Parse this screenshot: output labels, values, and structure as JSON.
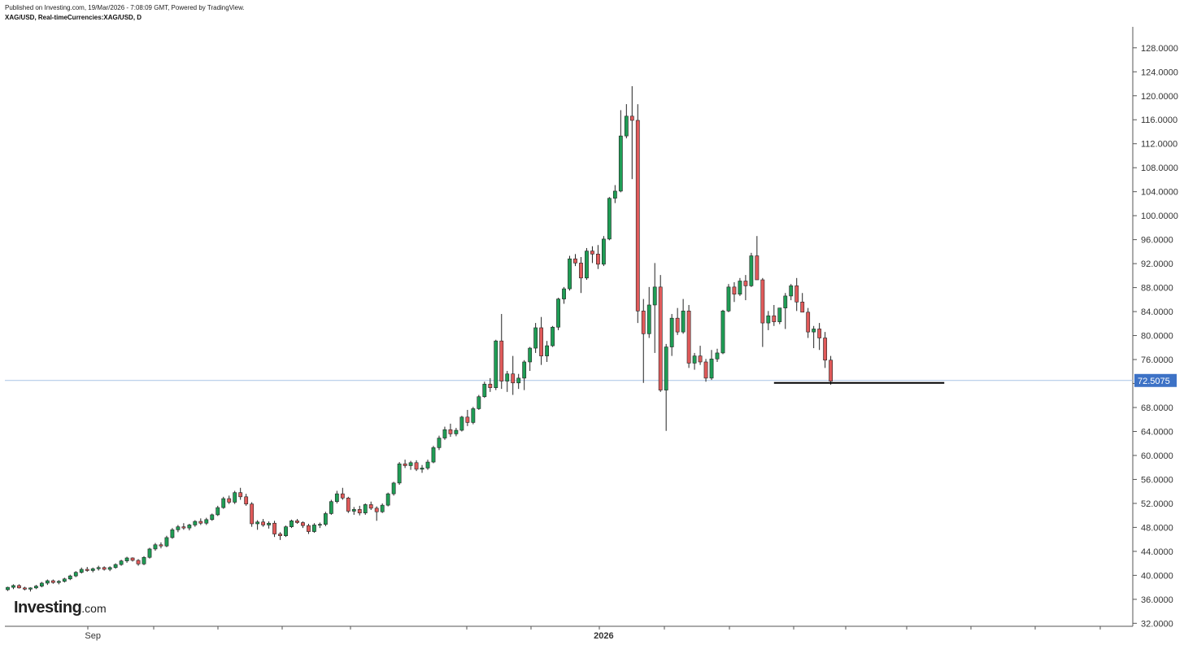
{
  "header": {
    "published": "Published on Investing.com, 19/Mar/2026 - 7:08:09 GMT, Powered by TradingView.",
    "symbol": "XAG/USD, Real-timeCurrencies:XAG/USD, D"
  },
  "logo": {
    "main": "Investing",
    "suffix": ".com"
  },
  "colors": {
    "up": "#1f9d55",
    "down": "#e05a5a",
    "wick": "#222222",
    "price_line": "#a9c4e6",
    "price_badge": "#3d72c6",
    "support": "#000000",
    "axis": "#555555"
  },
  "chart_data": {
    "type": "candlestick",
    "y_ticks": [
      "32.0000",
      "36.0000",
      "40.0000",
      "44.0000",
      "48.0000",
      "52.0000",
      "56.0000",
      "60.0000",
      "64.0000",
      "68.0000",
      "72.0000",
      "76.0000",
      "80.0000",
      "84.0000",
      "88.0000",
      "92.0000",
      "96.0000",
      "100.0000",
      "104.0000",
      "108.0000",
      "112.0000",
      "116.0000",
      "120.0000",
      "124.0000",
      "128.0000"
    ],
    "ylim": [
      31.5,
      131.5
    ],
    "x_labels": [
      {
        "label": "Sep",
        "index": 15
      },
      {
        "label": "2026",
        "index": 105
      }
    ],
    "current_price": 72.5075,
    "current_price_label": "72.5075",
    "support_level": 72.1,
    "support_range": [
      135,
      165
    ],
    "candles": [
      [
        37.6,
        38.1,
        37.4,
        38.0
      ],
      [
        38.0,
        38.5,
        37.7,
        38.3
      ],
      [
        38.3,
        38.5,
        37.8,
        37.9
      ],
      [
        37.9,
        38.1,
        37.5,
        37.7
      ],
      [
        37.7,
        38.0,
        37.3,
        37.9
      ],
      [
        37.9,
        38.4,
        37.7,
        38.2
      ],
      [
        38.2,
        38.9,
        38.0,
        38.7
      ],
      [
        38.7,
        39.3,
        38.4,
        39.1
      ],
      [
        39.1,
        39.3,
        38.6,
        38.8
      ],
      [
        38.8,
        39.2,
        38.5,
        39.0
      ],
      [
        39.0,
        39.6,
        38.8,
        39.4
      ],
      [
        39.4,
        40.1,
        39.2,
        39.9
      ],
      [
        39.9,
        40.7,
        39.7,
        40.5
      ],
      [
        40.5,
        41.3,
        40.3,
        41.0
      ],
      [
        41.0,
        41.4,
        40.6,
        40.8
      ],
      [
        40.8,
        41.3,
        40.5,
        41.1
      ],
      [
        41.1,
        41.6,
        40.8,
        41.3
      ],
      [
        41.3,
        41.5,
        40.8,
        41.0
      ],
      [
        41.0,
        41.5,
        40.7,
        41.3
      ],
      [
        41.3,
        42.0,
        41.1,
        41.8
      ],
      [
        41.8,
        42.6,
        41.6,
        42.4
      ],
      [
        42.4,
        43.1,
        42.1,
        42.9
      ],
      [
        42.9,
        43.0,
        42.3,
        42.5
      ],
      [
        42.5,
        42.7,
        41.6,
        41.9
      ],
      [
        41.9,
        43.2,
        41.7,
        43.0
      ],
      [
        43.0,
        44.6,
        42.8,
        44.4
      ],
      [
        44.4,
        45.4,
        44.1,
        45.1
      ],
      [
        45.1,
        45.5,
        44.5,
        44.9
      ],
      [
        44.9,
        46.6,
        44.7,
        46.3
      ],
      [
        46.3,
        47.9,
        46.1,
        47.6
      ],
      [
        47.6,
        48.4,
        47.2,
        48.1
      ],
      [
        48.1,
        48.7,
        47.6,
        47.9
      ],
      [
        47.9,
        48.6,
        47.5,
        48.4
      ],
      [
        48.4,
        49.2,
        48.1,
        49.0
      ],
      [
        49.0,
        49.5,
        48.4,
        48.7
      ],
      [
        48.7,
        49.6,
        48.4,
        49.3
      ],
      [
        49.3,
        50.3,
        49.1,
        50.1
      ],
      [
        50.1,
        51.6,
        49.9,
        51.3
      ],
      [
        51.3,
        53.1,
        51.1,
        52.8
      ],
      [
        52.8,
        53.3,
        51.9,
        52.2
      ],
      [
        52.2,
        54.1,
        51.9,
        53.8
      ],
      [
        53.8,
        54.6,
        52.6,
        53.1
      ],
      [
        53.1,
        53.6,
        51.6,
        51.9
      ],
      [
        51.9,
        52.2,
        48.1,
        48.6
      ],
      [
        48.6,
        49.2,
        47.6,
        48.9
      ],
      [
        48.9,
        49.4,
        48.1,
        48.4
      ],
      [
        48.4,
        49.0,
        47.8,
        48.7
      ],
      [
        48.7,
        49.1,
        46.4,
        46.9
      ],
      [
        46.9,
        47.2,
        45.9,
        46.6
      ],
      [
        46.6,
        48.3,
        46.4,
        48.1
      ],
      [
        48.1,
        49.3,
        47.9,
        49.1
      ],
      [
        49.1,
        49.4,
        48.6,
        48.8
      ],
      [
        48.8,
        49.0,
        47.9,
        48.3
      ],
      [
        48.3,
        48.6,
        46.9,
        47.3
      ],
      [
        47.3,
        48.7,
        47.1,
        48.4
      ],
      [
        48.4,
        48.8,
        47.9,
        48.5
      ],
      [
        48.5,
        50.6,
        48.2,
        50.3
      ],
      [
        50.3,
        52.6,
        50.1,
        52.3
      ],
      [
        52.3,
        54.1,
        52.0,
        53.6
      ],
      [
        53.6,
        54.6,
        52.6,
        52.9
      ],
      [
        52.9,
        53.1,
        50.4,
        50.7
      ],
      [
        50.7,
        51.4,
        50.1,
        51.0
      ],
      [
        51.0,
        51.6,
        50.0,
        50.4
      ],
      [
        50.4,
        52.0,
        50.1,
        51.8
      ],
      [
        51.8,
        52.3,
        50.9,
        51.2
      ],
      [
        51.2,
        51.5,
        49.1,
        50.6
      ],
      [
        50.6,
        52.0,
        50.4,
        51.7
      ],
      [
        51.7,
        53.8,
        51.5,
        53.6
      ],
      [
        53.6,
        55.6,
        53.3,
        55.4
      ],
      [
        55.4,
        58.9,
        55.1,
        58.6
      ],
      [
        58.6,
        59.3,
        57.9,
        58.3
      ],
      [
        58.3,
        59.1,
        57.6,
        58.8
      ],
      [
        58.8,
        59.2,
        57.4,
        57.7
      ],
      [
        57.7,
        58.4,
        57.1,
        57.9
      ],
      [
        57.9,
        59.3,
        57.6,
        58.9
      ],
      [
        58.9,
        61.6,
        58.7,
        61.3
      ],
      [
        61.3,
        63.3,
        60.9,
        62.9
      ],
      [
        62.9,
        64.8,
        62.6,
        64.3
      ],
      [
        64.3,
        65.3,
        63.1,
        63.6
      ],
      [
        63.6,
        64.6,
        63.2,
        64.2
      ],
      [
        64.2,
        66.6,
        64.0,
        66.4
      ],
      [
        66.4,
        67.6,
        64.9,
        65.5
      ],
      [
        65.5,
        68.1,
        65.2,
        67.8
      ],
      [
        67.8,
        70.1,
        67.6,
        69.8
      ],
      [
        69.8,
        72.3,
        69.6,
        71.9
      ],
      [
        71.9,
        72.9,
        70.6,
        71.3
      ],
      [
        71.3,
        79.3,
        70.9,
        79.1
      ],
      [
        79.1,
        83.6,
        71.1,
        72.4
      ],
      [
        72.4,
        74.1,
        70.6,
        73.6
      ],
      [
        73.6,
        76.6,
        70.1,
        72.1
      ],
      [
        72.1,
        73.6,
        71.1,
        72.9
      ],
      [
        72.9,
        75.9,
        70.9,
        75.6
      ],
      [
        75.6,
        78.1,
        74.1,
        77.9
      ],
      [
        77.9,
        82.1,
        77.1,
        81.3
      ],
      [
        81.3,
        83.1,
        75.1,
        76.6
      ],
      [
        76.6,
        79.1,
        75.6,
        78.3
      ],
      [
        78.3,
        81.6,
        78.1,
        81.4
      ],
      [
        81.4,
        86.3,
        80.9,
        86.1
      ],
      [
        86.1,
        88.1,
        85.3,
        87.8
      ],
      [
        87.8,
        93.3,
        87.5,
        92.8
      ],
      [
        92.8,
        93.6,
        91.6,
        92.1
      ],
      [
        92.1,
        93.1,
        87.1,
        89.6
      ],
      [
        89.6,
        94.6,
        89.3,
        94.1
      ],
      [
        94.1,
        94.9,
        92.1,
        93.6
      ],
      [
        93.6,
        95.1,
        91.1,
        91.9
      ],
      [
        91.9,
        96.6,
        91.6,
        96.1
      ],
      [
        96.1,
        103.1,
        95.9,
        102.9
      ],
      [
        102.9,
        105.1,
        102.1,
        104.1
      ],
      [
        104.1,
        117.6,
        103.9,
        113.3
      ],
      [
        113.3,
        118.6,
        112.9,
        116.6
      ],
      [
        116.6,
        121.6,
        106.1,
        115.9
      ],
      [
        115.9,
        118.6,
        82.1,
        84.1
      ],
      [
        84.1,
        86.1,
        72.1,
        80.3
      ],
      [
        80.3,
        88.1,
        79.6,
        85.1
      ],
      [
        85.1,
        92.1,
        77.1,
        88.1
      ],
      [
        88.1,
        90.1,
        70.6,
        70.9
      ],
      [
        70.9,
        78.6,
        64.1,
        78.1
      ],
      [
        78.1,
        83.6,
        76.6,
        82.9
      ],
      [
        82.9,
        84.6,
        80.1,
        80.6
      ],
      [
        80.6,
        86.1,
        80.3,
        84.1
      ],
      [
        84.1,
        85.1,
        74.6,
        75.4
      ],
      [
        75.4,
        77.1,
        74.3,
        76.6
      ],
      [
        76.6,
        78.3,
        75.1,
        75.6
      ],
      [
        75.6,
        76.1,
        72.3,
        72.9
      ],
      [
        72.9,
        77.6,
        72.6,
        76.1
      ],
      [
        76.1,
        77.8,
        75.6,
        77.1
      ],
      [
        77.1,
        84.3,
        76.9,
        84.1
      ],
      [
        84.1,
        88.6,
        83.9,
        88.1
      ],
      [
        88.1,
        88.9,
        85.6,
        86.9
      ],
      [
        86.9,
        89.6,
        86.6,
        89.1
      ],
      [
        89.1,
        90.1,
        85.9,
        88.3
      ],
      [
        88.3,
        93.8,
        88.1,
        93.3
      ],
      [
        93.3,
        96.6,
        90.1,
        89.3
      ],
      [
        89.3,
        89.6,
        78.1,
        82.1
      ],
      [
        82.1,
        84.1,
        80.9,
        83.3
      ],
      [
        83.3,
        85.1,
        81.6,
        82.3
      ],
      [
        82.3,
        84.6,
        81.9,
        84.6
      ],
      [
        84.6,
        87.1,
        81.1,
        86.6
      ],
      [
        86.6,
        88.6,
        85.9,
        88.3
      ],
      [
        88.3,
        89.6,
        84.1,
        85.6
      ],
      [
        85.6,
        87.1,
        83.9,
        83.9
      ],
      [
        83.9,
        84.6,
        79.6,
        80.6
      ],
      [
        80.6,
        81.6,
        77.9,
        81.1
      ],
      [
        81.1,
        82.1,
        77.6,
        79.6
      ],
      [
        79.6,
        80.6,
        74.6,
        75.9
      ],
      [
        75.9,
        76.6,
        71.8,
        72.4
      ]
    ]
  }
}
